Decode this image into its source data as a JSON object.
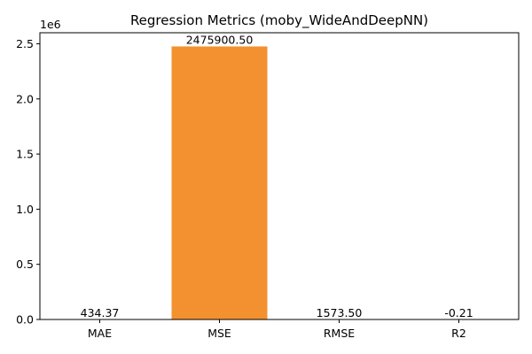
{
  "chart_data": {
    "type": "bar",
    "title": "Regression Metrics (moby_WideAndDeepNN)",
    "xlabel": "",
    "ylabel": "",
    "categories": [
      "MAE",
      "MSE",
      "RMSE",
      "R2"
    ],
    "values": [
      434.37,
      2475900.5,
      1573.5,
      -0.21
    ],
    "data_labels": [
      "434.37",
      "2475900.50",
      "1573.50",
      "-0.21"
    ],
    "y_scale_label": "1e6",
    "ylim": [
      0,
      2600000
    ],
    "yticks": [
      0,
      500000,
      1000000,
      1500000,
      2000000,
      2500000
    ],
    "ytick_labels": [
      "0.0",
      "0.5",
      "1.0",
      "1.5",
      "2.0",
      "2.5"
    ],
    "bar_color": "#f39130",
    "grid": false,
    "legend": "none"
  }
}
